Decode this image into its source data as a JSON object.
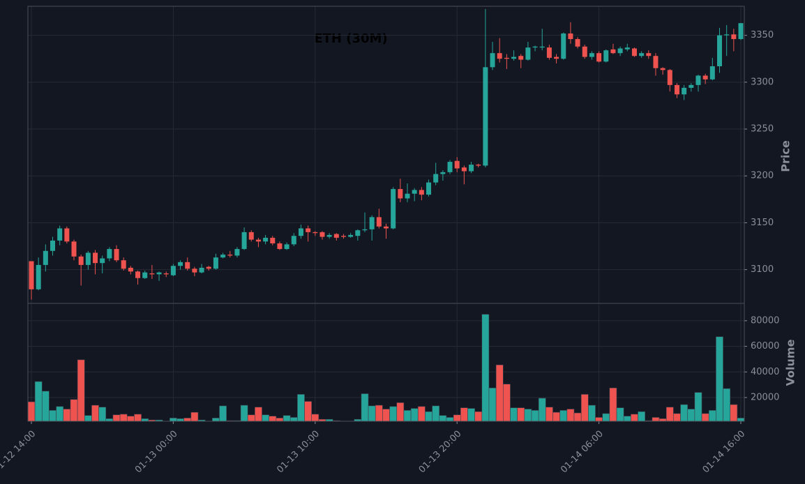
{
  "chart_data": {
    "type": "candlestick",
    "title": "ETH (30M)",
    "categories": [
      "01-12 14:00",
      null,
      null,
      null,
      null,
      null,
      null,
      null,
      null,
      null,
      null,
      null,
      null,
      null,
      null,
      null,
      null,
      null,
      null,
      null,
      "01-13 00:00",
      null,
      null,
      null,
      null,
      null,
      null,
      null,
      null,
      null,
      null,
      null,
      null,
      null,
      null,
      null,
      null,
      null,
      null,
      null,
      "01-13 10:00",
      null,
      null,
      null,
      null,
      null,
      null,
      null,
      null,
      null,
      null,
      null,
      null,
      null,
      null,
      null,
      null,
      null,
      null,
      null,
      "01-13 20:00",
      null,
      null,
      null,
      null,
      null,
      null,
      null,
      null,
      null,
      null,
      null,
      null,
      null,
      null,
      null,
      null,
      null,
      null,
      null,
      "01-14 06:00",
      null,
      null,
      null,
      null,
      null,
      null,
      null,
      null,
      null,
      null,
      null,
      null,
      null,
      null,
      null,
      null,
      null,
      null,
      null,
      "01-14 16:00"
    ],
    "open": [
      3109,
      3079,
      3105,
      3120,
      3131,
      3144,
      3130,
      3114,
      3105,
      3118,
      3107,
      3112,
      3122,
      3110,
      3102,
      3098,
      3091,
      3096,
      3095,
      3096,
      3094,
      3104,
      3108,
      3101,
      3097,
      3103,
      3101,
      3113,
      3116,
      3115,
      3122,
      3140,
      3132,
      3130,
      3134,
      3128,
      3122,
      3127,
      3136,
      3144,
      3140,
      3140,
      3135,
      3138,
      3136,
      3135,
      3136,
      3142,
      3143,
      3156,
      3146,
      3144,
      3186,
      3176,
      3181,
      3185,
      3180,
      3193,
      3202,
      3204,
      3216,
      3209,
      3205,
      3212,
      3211,
      3316,
      3331,
      3326,
      3325,
      3328,
      3324,
      3337,
      3337,
      3337,
      3327,
      3325,
      3352,
      3346,
      3338,
      3327,
      3331,
      3322,
      3335,
      3331,
      3335,
      3336,
      3328,
      3331,
      3328,
      3315,
      3313,
      3297,
      3287,
      3294,
      3297,
      3307,
      3303,
      3317,
      3350,
      3351,
      3346
    ],
    "high": [
      3109,
      3113,
      3127,
      3135,
      3147,
      3146,
      3132,
      3116,
      3120,
      3121,
      3115,
      3124,
      3126,
      3113,
      3104,
      3099,
      3099,
      3105,
      3098,
      3098,
      3106,
      3110,
      3113,
      3103,
      3106,
      3104,
      3117,
      3118,
      3120,
      3124,
      3145,
      3142,
      3134,
      3137,
      3136,
      3130,
      3129,
      3139,
      3148,
      3147,
      3141,
      3141,
      3139,
      3139,
      3138,
      3139,
      3143,
      3161,
      3158,
      3165,
      3149,
      3188,
      3197,
      3192,
      3187,
      3188,
      3196,
      3214,
      3206,
      3217,
      3220,
      3211,
      3215,
      3213,
      3378,
      3343,
      3347,
      3330,
      3334,
      3330,
      3343,
      3339,
      3357,
      3340,
      3330,
      3353,
      3364,
      3348,
      3340,
      3333,
      3333,
      3335,
      3341,
      3338,
      3341,
      3337,
      3333,
      3334,
      3331,
      3316,
      3314,
      3299,
      3297,
      3299,
      3308,
      3309,
      3326,
      3358,
      3361,
      3357,
      3363
    ],
    "low": [
      3068,
      3078,
      3098,
      3115,
      3126,
      3128,
      3110,
      3083,
      3100,
      3095,
      3096,
      3109,
      3108,
      3099,
      3095,
      3084,
      3090,
      3090,
      3088,
      3092,
      3093,
      3100,
      3099,
      3093,
      3096,
      3099,
      3100,
      3112,
      3113,
      3113,
      3121,
      3130,
      3124,
      3127,
      3126,
      3121,
      3121,
      3125,
      3133,
      3130,
      3136,
      3132,
      3133,
      3131,
      3133,
      3134,
      3131,
      3140,
      3131,
      3144,
      3133,
      3143,
      3172,
      3172,
      3173,
      3174,
      3178,
      3190,
      3195,
      3202,
      3204,
      3191,
      3203,
      3209,
      3209,
      3313,
      3321,
      3314,
      3323,
      3315,
      3323,
      3333,
      3334,
      3324,
      3320,
      3324,
      3341,
      3336,
      3325,
      3324,
      3321,
      3321,
      3330,
      3328,
      3333,
      3327,
      3326,
      3325,
      3307,
      3308,
      3290,
      3283,
      3281,
      3290,
      3290,
      3298,
      3302,
      3310,
      3328,
      3333,
      3345
    ],
    "close": [
      3079,
      3105,
      3120,
      3131,
      3144,
      3130,
      3114,
      3105,
      3118,
      3107,
      3112,
      3122,
      3110,
      3101,
      3098,
      3091,
      3097,
      3095,
      3097,
      3095,
      3104,
      3108,
      3101,
      3097,
      3102,
      3101,
      3113,
      3116,
      3115,
      3122,
      3140,
      3132,
      3130,
      3134,
      3128,
      3122,
      3127,
      3136,
      3144,
      3140,
      3139,
      3135,
      3137,
      3134,
      3135,
      3137,
      3142,
      3143,
      3156,
      3146,
      3144,
      3186,
      3176,
      3181,
      3185,
      3180,
      3193,
      3202,
      3204,
      3215,
      3208,
      3205,
      3212,
      3211,
      3316,
      3331,
      3325,
      3325,
      3327,
      3324,
      3337,
      3338,
      3338,
      3326,
      3325,
      3352,
      3346,
      3338,
      3327,
      3331,
      3322,
      3334,
      3331,
      3336,
      3337,
      3328,
      3331,
      3328,
      3315,
      3313,
      3297,
      3287,
      3294,
      3297,
      3307,
      3303,
      3317,
      3350,
      3351,
      3346,
      3363
    ],
    "ylabel": "Price",
    "ylim": [
      3064,
      3381
    ],
    "yticks": [
      3100,
      3150,
      3200,
      3250,
      3300,
      3350
    ],
    "colors": {
      "up": "#26a69a",
      "down": "#ef5350"
    },
    "grid": true,
    "volume": {
      "label": "Volume",
      "ylim": [
        1500,
        93000
      ],
      "yticks": [
        20000,
        40000,
        60000,
        80000
      ],
      "values": [
        16700,
        32500,
        25000,
        10000,
        13000,
        11000,
        18500,
        49500,
        6000,
        14000,
        12500,
        3500,
        6500,
        7000,
        5500,
        7000,
        3500,
        2500,
        2500,
        1500,
        4000,
        3500,
        4000,
        8500,
        2500,
        1500,
        4000,
        13500,
        2000,
        2000,
        14000,
        6500,
        12500,
        6500,
        5500,
        4000,
        6000,
        4500,
        22500,
        17000,
        7000,
        3000,
        3000,
        2000,
        1500,
        1500,
        3000,
        23000,
        13500,
        14000,
        11000,
        13000,
        16000,
        10000,
        11500,
        13000,
        9000,
        13500,
        6000,
        4500,
        6500,
        12000,
        11500,
        9000,
        85000,
        27500,
        45500,
        30500,
        12000,
        12000,
        11000,
        10000,
        19500,
        12500,
        8500,
        10000,
        11000,
        8000,
        22500,
        14000,
        4500,
        7500,
        27500,
        12000,
        5500,
        7000,
        9000,
        2000,
        4500,
        3500,
        12500,
        7500,
        14500,
        11000,
        24000,
        7500,
        10000,
        67500,
        27000,
        14500,
        4000
      ]
    }
  }
}
